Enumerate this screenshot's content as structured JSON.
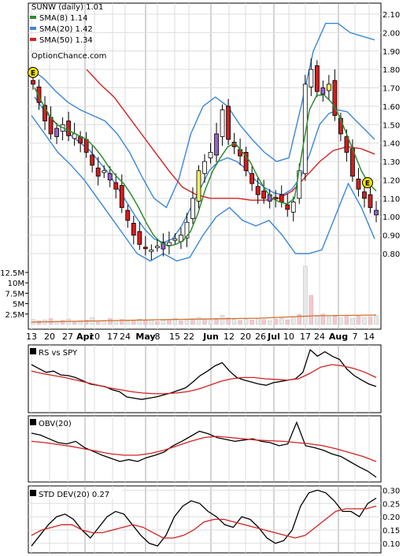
{
  "chart_data": [
    {
      "type": "candlestick",
      "title": "",
      "legend": [
        {
          "label": "SUNW (daily) 1.01",
          "color": "#000000"
        },
        {
          "label": "SMA(8) 1.14",
          "color": "#2e8b2e"
        },
        {
          "label": "SMA(20) 1.42",
          "color": "#3a86d8"
        },
        {
          "label": "SMA(50) 1.34",
          "color": "#d42020"
        }
      ],
      "watermark": "OptionChance.com",
      "event_marker": "E",
      "event_markers_x": [
        "Mar 12",
        "Aug 16"
      ],
      "y_ticks": [
        "2.10",
        "2.00",
        "1.90",
        "1.80",
        "1.70",
        "1.60",
        "1.50",
        "1.40",
        "1.30",
        "1.20",
        "1.10",
        "1.00",
        "0.90",
        "0.80"
      ],
      "ylim": [
        0.75,
        2.12
      ],
      "x_ticks": [
        "13",
        "20",
        "27",
        "Apr",
        "10",
        "17",
        "24",
        "May",
        "8",
        "15",
        "22",
        "Jun",
        "12",
        "20",
        "26",
        "Jul",
        "10",
        "17",
        "24",
        "Aug",
        "7",
        "14"
      ],
      "x_months": [
        "Apr",
        "May",
        "Jun",
        "Jul",
        "Aug"
      ],
      "close_path": [
        1.72,
        1.62,
        1.52,
        1.45,
        1.48,
        1.5,
        1.44,
        1.45,
        1.4,
        1.35,
        1.28,
        1.22,
        1.25,
        1.2,
        1.15,
        1.05,
        0.98,
        0.9,
        0.85,
        0.83,
        0.82,
        0.84,
        0.86,
        0.86,
        0.88,
        0.9,
        0.97,
        1.1,
        1.25,
        1.3,
        1.35,
        1.45,
        1.58,
        1.42,
        1.38,
        1.33,
        1.25,
        1.18,
        1.12,
        1.1,
        1.12,
        1.1,
        1.08,
        1.04,
        1.08,
        1.25,
        1.72,
        1.8,
        1.68,
        1.7,
        1.72,
        1.55,
        1.45,
        1.35,
        1.22,
        1.15,
        1.1,
        1.05,
        1.01
      ],
      "sma8": [
        1.7,
        1.62,
        1.55,
        1.5,
        1.48,
        1.46,
        1.44,
        1.42,
        1.38,
        1.33,
        1.27,
        1.22,
        1.18,
        1.12,
        1.05,
        0.97,
        0.9,
        0.86,
        0.84,
        0.85,
        0.87,
        0.92,
        1.02,
        1.15,
        1.25,
        1.32,
        1.38,
        1.4,
        1.35,
        1.3,
        1.22,
        1.15,
        1.1,
        1.08,
        1.07,
        1.1,
        1.35,
        1.58,
        1.66,
        1.66,
        1.62,
        1.55,
        1.45,
        1.35,
        1.25,
        1.18,
        1.14
      ],
      "sma20": [
        1.65,
        1.58,
        1.52,
        1.48,
        1.44,
        1.4,
        1.36,
        1.3,
        1.24,
        1.16,
        1.08,
        1.0,
        0.93,
        0.88,
        0.86,
        0.88,
        0.95,
        1.05,
        1.15,
        1.25,
        1.3,
        1.32,
        1.3,
        1.26,
        1.2,
        1.16,
        1.13,
        1.12,
        1.15,
        1.22,
        1.35,
        1.5,
        1.56,
        1.58,
        1.57,
        1.52,
        1.47,
        1.42
      ],
      "sma50": [
        1.8,
        1.72,
        1.65,
        1.55,
        1.45,
        1.35,
        1.25,
        1.16,
        1.12,
        1.1,
        1.1,
        1.1,
        1.09,
        1.09,
        1.1,
        1.14,
        1.22,
        1.3,
        1.36,
        1.38,
        1.37,
        1.34
      ],
      "bb_upper": [
        1.8,
        1.75,
        1.68,
        1.62,
        1.58,
        1.55,
        1.52,
        1.45,
        1.35,
        1.22,
        1.1,
        1.05,
        1.2,
        1.45,
        1.6,
        1.65,
        1.6,
        1.5,
        1.42,
        1.35,
        1.3,
        1.32,
        1.6,
        1.9,
        2.05,
        2.05,
        2.0,
        1.98,
        1.96
      ],
      "bb_lower": [
        1.55,
        1.45,
        1.35,
        1.28,
        1.2,
        1.1,
        1.0,
        0.9,
        0.8,
        0.76,
        0.8,
        0.76,
        0.78,
        0.9,
        1.0,
        1.05,
        0.98,
        0.95,
        0.98,
        0.9,
        0.8,
        0.8,
        0.82,
        1.0,
        1.18,
        1.05,
        0.88
      ]
    },
    {
      "type": "bar",
      "title": "Volume",
      "y_ticks": [
        "12.5M",
        "10M",
        "7.5M",
        "5M",
        "2.5M"
      ],
      "ylim": [
        0,
        14000000
      ],
      "values": [
        1.2,
        0.9,
        1.1,
        1.4,
        0.8,
        1.0,
        1.3,
        0.7,
        0.9,
        1.1,
        1.6,
        0.8,
        1.0,
        1.4,
        0.9,
        1.2,
        0.8,
        1.0,
        1.3,
        0.9,
        1.1,
        0.7,
        1.0,
        1.2,
        1.5,
        0.9,
        1.1,
        1.4,
        1.7,
        1.3,
        1.0,
        1.5,
        2.2,
        1.6,
        1.2,
        1.0,
        1.3,
        1.1,
        1.4,
        1.2,
        0.9,
        1.3,
        1.5,
        1.1,
        1.6,
        2.4,
        5.5,
        3.0,
        2.2,
        2.5,
        1.8,
        2.0,
        1.6,
        1.9,
        1.5,
        2.0,
        1.7,
        1.9,
        2.1
      ],
      "spikes": [
        {
          "x_index": 46,
          "value": 14.0
        },
        {
          "x_index": 47,
          "value": 7.0
        }
      ]
    },
    {
      "type": "line",
      "legend": [
        {
          "label": "RS vs SPY",
          "color": "#000000"
        }
      ],
      "series": [
        {
          "color": "#000000",
          "values": [
            0.72,
            0.66,
            0.6,
            0.62,
            0.56,
            0.55,
            0.52,
            0.47,
            0.42,
            0.4,
            0.38,
            0.33,
            0.3,
            0.22,
            0.2,
            0.18,
            0.2,
            0.22,
            0.25,
            0.28,
            0.32,
            0.36,
            0.45,
            0.55,
            0.62,
            0.7,
            0.75,
            0.62,
            0.52,
            0.48,
            0.45,
            0.42,
            0.4,
            0.44,
            0.46,
            0.48,
            0.5,
            0.6,
            0.95,
            0.85,
            0.92,
            0.85,
            0.8,
            0.65,
            0.55,
            0.48,
            0.42,
            0.38
          ]
        },
        {
          "color": "#d42020",
          "values": [
            0.62,
            0.58,
            0.55,
            0.52,
            0.48,
            0.44,
            0.4,
            0.36,
            0.33,
            0.3,
            0.28,
            0.27,
            0.27,
            0.28,
            0.3,
            0.34,
            0.4,
            0.46,
            0.5,
            0.52,
            0.52,
            0.5,
            0.49,
            0.48,
            0.5,
            0.58,
            0.68,
            0.72,
            0.7,
            0.66,
            0.6,
            0.52
          ]
        }
      ]
    },
    {
      "type": "line",
      "legend": [
        {
          "label": "OBV(20)",
          "color": "#000000"
        }
      ],
      "series": [
        {
          "color": "#000000",
          "values": [
            0.75,
            0.72,
            0.66,
            0.6,
            0.58,
            0.62,
            0.52,
            0.46,
            0.4,
            0.35,
            0.3,
            0.33,
            0.3,
            0.36,
            0.4,
            0.45,
            0.55,
            0.62,
            0.7,
            0.78,
            0.74,
            0.68,
            0.65,
            0.62,
            0.64,
            0.66,
            0.62,
            0.6,
            0.55,
            0.58,
            0.92,
            0.55,
            0.52,
            0.48,
            0.42,
            0.38,
            0.3,
            0.22,
            0.15,
            0.05
          ]
        },
        {
          "color": "#d42020",
          "values": [
            0.62,
            0.6,
            0.57,
            0.54,
            0.5,
            0.46,
            0.42,
            0.4,
            0.4,
            0.43,
            0.48,
            0.55,
            0.62,
            0.68,
            0.7,
            0.68,
            0.66,
            0.64,
            0.63,
            0.62,
            0.6,
            0.58,
            0.55,
            0.5,
            0.44,
            0.38,
            0.3
          ]
        }
      ]
    },
    {
      "type": "line",
      "legend": [
        {
          "label": "STD DEV(20) 0.27",
          "color": "#000000"
        }
      ],
      "y_ticks": [
        "0.30",
        "0.25",
        "0.20",
        "0.15",
        "0.10"
      ],
      "ylim": [
        0.07,
        0.31
      ],
      "series": [
        {
          "color": "#000000",
          "values": [
            0.09,
            0.13,
            0.17,
            0.2,
            0.21,
            0.19,
            0.15,
            0.12,
            0.16,
            0.2,
            0.22,
            0.21,
            0.17,
            0.13,
            0.1,
            0.09,
            0.13,
            0.2,
            0.24,
            0.26,
            0.25,
            0.22,
            0.2,
            0.17,
            0.16,
            0.2,
            0.19,
            0.16,
            0.12,
            0.1,
            0.11,
            0.15,
            0.24,
            0.29,
            0.3,
            0.29,
            0.26,
            0.22,
            0.22,
            0.2,
            0.25,
            0.27
          ]
        },
        {
          "color": "#d42020",
          "values": [
            0.13,
            0.15,
            0.16,
            0.17,
            0.17,
            0.15,
            0.14,
            0.14,
            0.15,
            0.16,
            0.17,
            0.16,
            0.14,
            0.12,
            0.12,
            0.13,
            0.15,
            0.18,
            0.19,
            0.19,
            0.18,
            0.17,
            0.16,
            0.15,
            0.14,
            0.13,
            0.12,
            0.13,
            0.16,
            0.19,
            0.22,
            0.23,
            0.23,
            0.23,
            0.24
          ]
        }
      ]
    }
  ]
}
